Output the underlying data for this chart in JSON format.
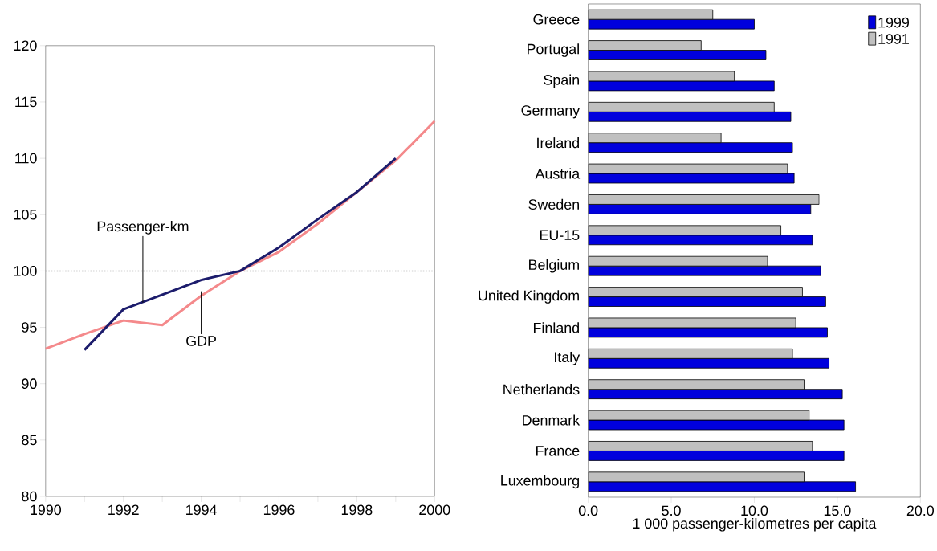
{
  "chart_data": [
    {
      "type": "line",
      "xlim": [
        1990,
        2000
      ],
      "ylim": [
        80,
        120
      ],
      "xticks": [
        1990,
        {
          "value": 1991,
          "label": null
        },
        1992,
        {
          "value": 1993,
          "label": null
        },
        1994,
        {
          "value": 1995,
          "label": null
        },
        1996,
        {
          "value": 1997,
          "label": null
        },
        1998,
        {
          "value": 1999,
          "label": null
        },
        2000
      ],
      "yticks": [
        80,
        85,
        90,
        95,
        100,
        105,
        110,
        115,
        120
      ],
      "ref_lines": [
        {
          "axis": "y",
          "value": 100,
          "color": "#a0a0a0",
          "line_style": "dotted"
        }
      ],
      "annotations": [
        {
          "text": "Passenger-km",
          "x": 1992.5,
          "y": 97.2
        },
        {
          "text": "GDP",
          "x": 1994,
          "y": 98.2
        }
      ],
      "series": [
        {
          "color": "#f4898b",
          "x": [
            1990,
            1991,
            1992,
            1993,
            1994,
            1995,
            1996,
            1997,
            1998,
            1999,
            2000
          ],
          "values": [
            93.1,
            94.4,
            95.6,
            95.2,
            97.8,
            100,
            101.7,
            104.2,
            107.0,
            109.8,
            113.3
          ]
        },
        {
          "color": "#1c1c6c",
          "x": [
            1991,
            1992,
            1993,
            1994,
            1995,
            1996,
            1997,
            1998,
            1999
          ],
          "values": [
            93.0,
            96.6,
            97.9,
            99.2,
            100,
            102.1,
            104.6,
            107.0,
            110.0
          ]
        }
      ]
    },
    {
      "type": "bar",
      "orientation": "horizontal",
      "xlabel": "1 000 passenger-kilometres per capita",
      "legend": "top right",
      "categories": [
        "Greece",
        "Portugal",
        "Spain",
        "Germany",
        "Ireland",
        "Austria",
        "Sweden",
        "EU-15",
        "Belgium",
        "United Kingdom",
        "Finland",
        "Italy",
        "Netherlands",
        "Denmark",
        "France",
        "Luxembourg"
      ],
      "xlim": [
        0,
        20
      ],
      "xticks": [
        {
          "value": 0,
          "label": "0.0"
        },
        {
          "value": 5,
          "label": "5.0"
        },
        {
          "value": 10,
          "label": "10.0"
        },
        {
          "value": 15,
          "label": "15.0"
        },
        {
          "value": 20,
          "label": "20.0"
        }
      ],
      "series": [
        {
          "name": "1999",
          "color": "#0000dd",
          "values": [
            10.0,
            10.7,
            11.2,
            12.2,
            12.3,
            12.4,
            13.4,
            13.5,
            14.0,
            14.3,
            14.4,
            14.5,
            15.3,
            15.4,
            15.4,
            16.1
          ]
        },
        {
          "name": "1991",
          "color": "#c0c0c0",
          "values": [
            7.5,
            6.8,
            8.8,
            11.2,
            8.0,
            12.0,
            13.9,
            11.6,
            10.8,
            12.9,
            12.5,
            12.3,
            13.0,
            13.3,
            13.5,
            13.0
          ]
        }
      ]
    }
  ]
}
